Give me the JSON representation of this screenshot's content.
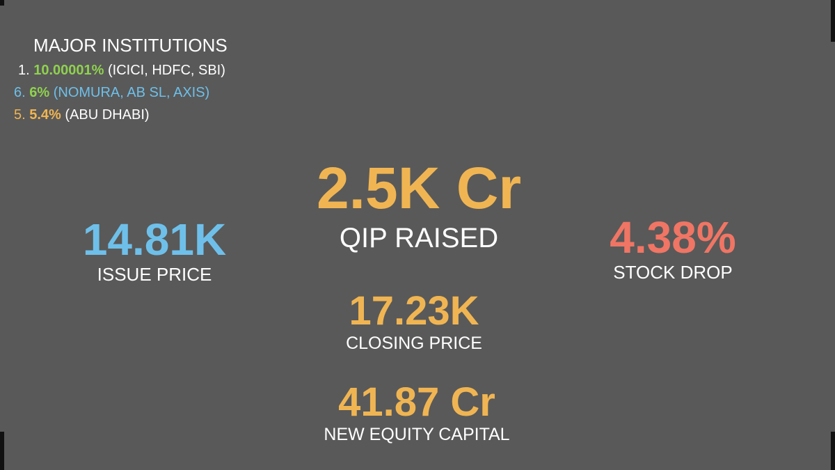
{
  "institutions": {
    "title": "MAJOR INSTITUTIONS",
    "items": [
      {
        "rank": "1.",
        "share": "10.00001%",
        "names": "(ICICI, HDFC, SBI)"
      },
      {
        "rank": "6.",
        "share": "6%",
        "names": "(NOMURA, AB SL, AXIS)"
      },
      {
        "rank": "5.",
        "share": "5.4%",
        "names": "(ABU DHABI)"
      }
    ]
  },
  "metrics": [
    {
      "value": "2.5K Cr",
      "label": "QIP RAISED"
    },
    {
      "value": "14.81K",
      "label": "ISSUE PRICE"
    },
    {
      "value": "4.38%",
      "label": "STOCK DROP"
    },
    {
      "value": "17.23K",
      "label": "CLOSING PRICE"
    },
    {
      "value": "41.87 Cr",
      "label": "NEW EQUITY CAPITAL"
    }
  ]
}
